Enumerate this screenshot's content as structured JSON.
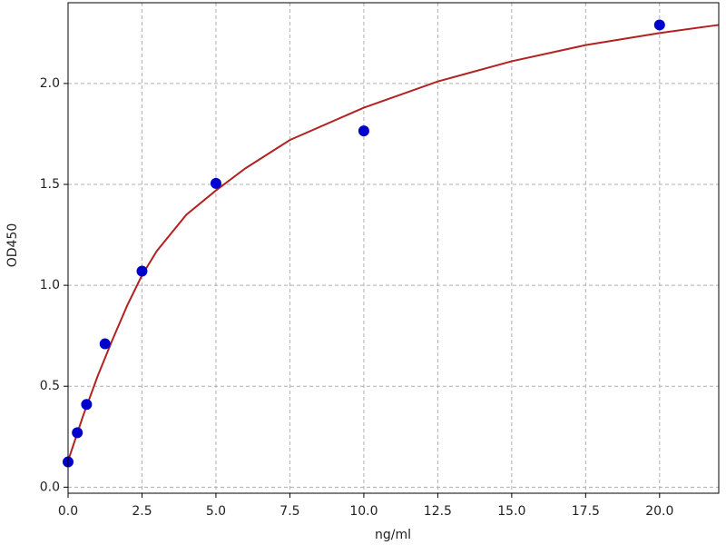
{
  "chart_data": {
    "type": "scatter",
    "x_label": "ng/ml",
    "y_label": "OD450",
    "xlim": [
      0,
      22
    ],
    "ylim": [
      -0.03,
      2.4
    ],
    "xticks": [
      {
        "value": 0,
        "label": "0.0"
      },
      2.5,
      {
        "value": 5,
        "label": "5.0"
      },
      7.5,
      {
        "value": 10,
        "label": "10.0"
      },
      12.5,
      {
        "value": 15,
        "label": "15.0"
      },
      17.5,
      {
        "value": 20,
        "label": "20.0"
      }
    ],
    "yticks": [
      {
        "value": 0,
        "label": "0.0"
      },
      0.5,
      {
        "value": 1,
        "label": "1.0"
      },
      1.5,
      {
        "value": 2,
        "label": "2.0"
      }
    ],
    "grid": true,
    "series": [
      {
        "type": "line",
        "color": "#b22222",
        "x": [
          0,
          0.5,
          1,
          1.5,
          2,
          2.5,
          3,
          4,
          5,
          6,
          7.5,
          10,
          12.5,
          15,
          17.5,
          20,
          22
        ],
        "values": [
          0.13,
          0.35,
          0.55,
          0.73,
          0.9,
          1.05,
          1.17,
          1.35,
          1.47,
          1.58,
          1.72,
          1.88,
          2.01,
          2.11,
          2.19,
          2.25,
          2.29
        ]
      },
      {
        "type": "scatter",
        "color": "#0000cc",
        "x": [
          0,
          0.3125,
          0.625,
          1.25,
          2.5,
          5,
          10,
          20
        ],
        "values": [
          0.125,
          0.27,
          0.41,
          0.71,
          1.07,
          1.505,
          1.765,
          2.29
        ]
      }
    ]
  }
}
